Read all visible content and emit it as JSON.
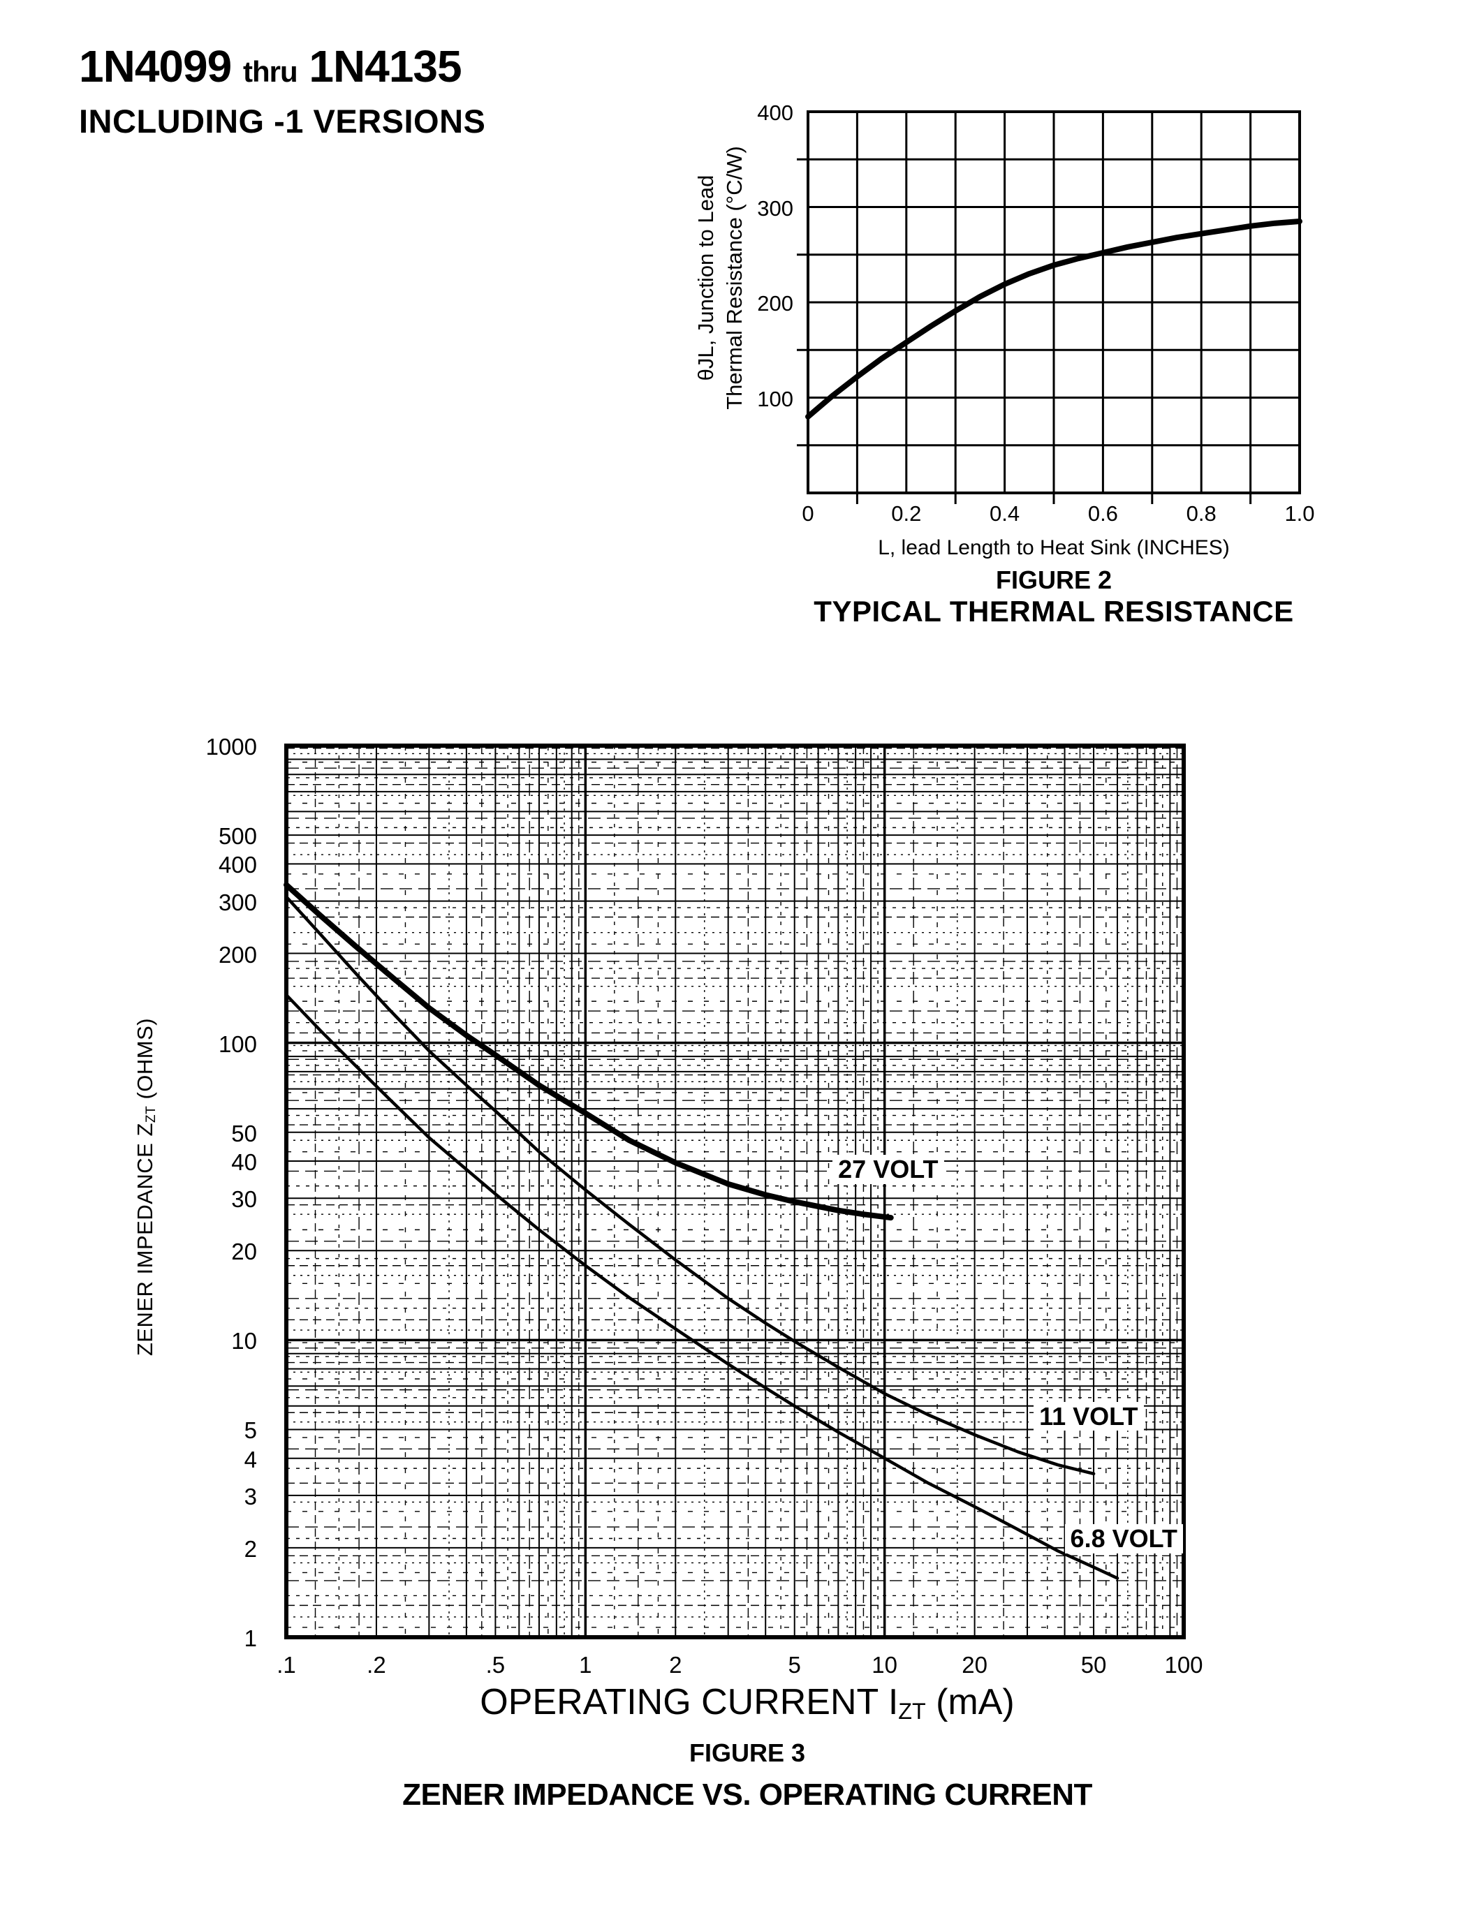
{
  "header": {
    "part_range_start": "1N4099",
    "thru": "thru",
    "part_range_end": "1N4135",
    "subtitle": "INCLUDING -1 VERSIONS"
  },
  "chart_data": [
    {
      "id": "figure-2",
      "type": "line",
      "scale": "linear",
      "figure_label": "FIGURE 2",
      "title": "TYPICAL THERMAL RESISTANCE",
      "xlabel": "L, lead Length to Heat Sink (INCHES)",
      "ylabel_line1": "θJL, Junction to Lead",
      "ylabel_line2": "Thermal Resistance (°C/W)",
      "xlim": [
        0,
        1.0
      ],
      "ylim": [
        0,
        400
      ],
      "x_grid_step": 0.1,
      "y_grid_step": 50,
      "grid": true,
      "legend": "none",
      "x_tick_labels": [
        "0",
        "0.2",
        "0.4",
        "0.6",
        "0.8",
        "1.0"
      ],
      "x_tick_values": [
        0,
        0.2,
        0.4,
        0.6,
        0.8,
        1.0
      ],
      "y_tick_labels": [
        "400",
        "300",
        "200",
        "100"
      ],
      "y_tick_values": [
        400,
        300,
        200,
        100
      ],
      "series": [
        {
          "name": "junction-to-lead-thermal-resistance",
          "points": [
            [
              0,
              80
            ],
            [
              0.05,
              102
            ],
            [
              0.1,
              122
            ],
            [
              0.15,
              141
            ],
            [
              0.2,
              158
            ],
            [
              0.25,
              175
            ],
            [
              0.3,
              191
            ],
            [
              0.35,
              206
            ],
            [
              0.4,
              219
            ],
            [
              0.45,
              230
            ],
            [
              0.5,
              239
            ],
            [
              0.55,
              246
            ],
            [
              0.6,
              252
            ],
            [
              0.65,
              258
            ],
            [
              0.7,
              263
            ],
            [
              0.75,
              268
            ],
            [
              0.8,
              272
            ],
            [
              0.85,
              276
            ],
            [
              0.9,
              280
            ],
            [
              0.95,
              283
            ],
            [
              1.0,
              285
            ]
          ]
        }
      ]
    },
    {
      "id": "figure-3",
      "type": "line",
      "scale": "log-log",
      "figure_label": "FIGURE 3",
      "title": "ZENER IMPEDANCE VS. OPERATING CURRENT",
      "xlabel_pre": "OPERATING CURRENT I",
      "xlabel_sub": "ZT",
      "xlabel_post": " (mA)",
      "ylabel_pre": "ZENER IMPEDANCE Z",
      "ylabel_sub": "ZT",
      "ylabel_post": " (OHMS)",
      "xlim": [
        0.1,
        100
      ],
      "ylim": [
        1,
        1000
      ],
      "grid": true,
      "legend": "inline-labels",
      "x_ticks": [
        {
          "label": ".1",
          "value": 0.1
        },
        {
          "label": ".2",
          "value": 0.2
        },
        {
          "label": ".5",
          "value": 0.5
        },
        {
          "label": "1",
          "value": 1
        },
        {
          "label": "2",
          "value": 2
        },
        {
          "label": "5",
          "value": 5
        },
        {
          "label": "10",
          "value": 10
        },
        {
          "label": "20",
          "value": 20
        },
        {
          "label": "50",
          "value": 50
        },
        {
          "label": "100",
          "value": 100
        }
      ],
      "y_ticks": [
        {
          "label": "1000",
          "value": 1000
        },
        {
          "label": "500",
          "value": 500
        },
        {
          "label": "400",
          "value": 400
        },
        {
          "label": "300",
          "value": 300
        },
        {
          "label": "200",
          "value": 200
        },
        {
          "label": "100",
          "value": 100
        },
        {
          "label": "50",
          "value": 50
        },
        {
          "label": "40",
          "value": 40
        },
        {
          "label": "30",
          "value": 30
        },
        {
          "label": "20",
          "value": 20
        },
        {
          "label": "10",
          "value": 10
        },
        {
          "label": "5",
          "value": 5
        },
        {
          "label": "4",
          "value": 4
        },
        {
          "label": "3",
          "value": 3
        },
        {
          "label": "2",
          "value": 2
        },
        {
          "label": "1",
          "value": 1
        }
      ],
      "series": [
        {
          "name": "27-volt",
          "label": "27 VOLT",
          "label_anchor": {
            "x": 6.7,
            "y": 42
          },
          "thick": true,
          "points": [
            [
              0.1,
              340
            ],
            [
              0.13,
              268
            ],
            [
              0.17,
              212
            ],
            [
              0.22,
              170
            ],
            [
              0.3,
              131
            ],
            [
              0.4,
              106
            ],
            [
              0.5,
              91
            ],
            [
              0.7,
              72
            ],
            [
              1,
              58
            ],
            [
              1.4,
              47
            ],
            [
              2,
              39.5
            ],
            [
              3,
              33.5
            ],
            [
              4,
              30.8
            ],
            [
              5,
              29.2
            ],
            [
              7,
              27.3
            ],
            [
              8.5,
              26.5
            ],
            [
              10.5,
              25.8
            ]
          ]
        },
        {
          "name": "11-volt",
          "label": "11 VOLT",
          "label_anchor": {
            "x": 31.5,
            "y": 6.2
          },
          "thick": false,
          "points": [
            [
              0.1,
              310
            ],
            [
              0.13,
              232
            ],
            [
              0.17,
              172
            ],
            [
              0.22,
              130
            ],
            [
              0.3,
              94
            ],
            [
              0.4,
              72
            ],
            [
              0.5,
              59
            ],
            [
              0.7,
              43
            ],
            [
              1,
              32
            ],
            [
              1.4,
              24.5
            ],
            [
              2,
              18.6
            ],
            [
              3,
              13.8
            ],
            [
              4,
              11.4
            ],
            [
              5,
              9.9
            ],
            [
              7,
              8.1
            ],
            [
              10,
              6.6
            ],
            [
              14,
              5.6
            ],
            [
              20,
              4.8
            ],
            [
              28,
              4.2
            ],
            [
              38,
              3.8
            ],
            [
              50,
              3.55
            ]
          ]
        },
        {
          "name": "6.8-volt",
          "label": "6.8 VOLT",
          "label_anchor": {
            "x": 40,
            "y": 2.4
          },
          "thick": false,
          "points": [
            [
              0.1,
              145
            ],
            [
              0.13,
              110
            ],
            [
              0.17,
              84
            ],
            [
              0.22,
              65
            ],
            [
              0.3,
              48
            ],
            [
              0.4,
              37.5
            ],
            [
              0.5,
              31
            ],
            [
              0.7,
              23.5
            ],
            [
              1,
              17.8
            ],
            [
              1.4,
              13.9
            ],
            [
              2,
              10.9
            ],
            [
              3,
              8.3
            ],
            [
              4,
              6.9
            ],
            [
              5,
              6.0
            ],
            [
              7,
              4.9
            ],
            [
              10,
              4.0
            ],
            [
              14,
              3.3
            ],
            [
              20,
              2.75
            ],
            [
              28,
              2.3
            ],
            [
              38,
              1.95
            ],
            [
              50,
              1.72
            ],
            [
              60,
              1.58
            ]
          ]
        }
      ]
    }
  ]
}
